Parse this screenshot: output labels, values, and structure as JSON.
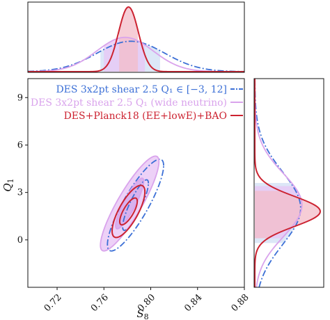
{
  "chart_data": {
    "type": "corner-contour",
    "xlabel": "S_8",
    "ylabel": "Q_1",
    "xlim": [
      0.695,
      0.88
    ],
    "ylim": [
      -3,
      10.2
    ],
    "x_ticks": [
      "0.72",
      "0.76",
      "0.80",
      "0.84",
      "0.88"
    ],
    "y_ticks": [
      "0",
      "3",
      "6",
      "9"
    ],
    "legend_placement": "top-right",
    "series": [
      {
        "name": "DES 3x2pt shear 2.5  Q₁ ∈ [−3, 12]",
        "color": "#3b6fd6",
        "style": "dash-dot",
        "fill": "#d8e4f6",
        "contour_center": [
          0.787,
          2.2
        ],
        "contour_68": {
          "sx": 0.011,
          "sy": 1.6,
          "rho": 0.86
        },
        "contour_95": {
          "sx": 0.024,
          "sy": 2.9,
          "rho": 0.86
        },
        "marg_s8": {
          "mean": 0.783,
          "sd": 0.029,
          "band68": [
            0.757,
            0.808
          ]
        },
        "marg_q1": {
          "mean": 2.0,
          "sd": 2.3,
          "band68": [
            -0.2,
            3.6
          ]
        }
      },
      {
        "name": "DES 3x2pt shear 2.5  Q₁ (wide neutrino)",
        "color": "#d9a3ec",
        "style": "solid",
        "fill": "#e8c6f5",
        "contour_center": [
          0.782,
          2.3
        ],
        "contour_68": {
          "sx": 0.012,
          "sy": 1.6,
          "rho": 0.88
        },
        "contour_95": {
          "sx": 0.025,
          "sy": 3.0,
          "rho": 0.88
        },
        "marg_s8": {
          "mean": 0.778,
          "sd": 0.024,
          "band68": [
            0.76,
            0.795
          ]
        },
        "marg_q1": {
          "mean": 2.2,
          "sd": 2.0,
          "band68": [
            0.1,
            3.4
          ]
        }
      },
      {
        "name": "DES+Planck18 (EE+lowE)+BAO",
        "color": "#cc2230",
        "style": "solid",
        "fill": "#f3bcc8",
        "contour_center": [
          0.781,
          1.8
        ],
        "contour_68": {
          "sx": 0.0075,
          "sy": 0.85,
          "rho": 0.75
        },
        "contour_95": {
          "sx": 0.014,
          "sy": 1.65,
          "rho": 0.75
        },
        "marg_s8": {
          "mean": 0.781,
          "sd": 0.0085,
          "band68": [
            0.773,
            0.789
          ]
        },
        "marg_q1": {
          "mean": 1.8,
          "sd": 0.95,
          "band68": [
            0.1,
            3.1
          ]
        }
      }
    ]
  }
}
